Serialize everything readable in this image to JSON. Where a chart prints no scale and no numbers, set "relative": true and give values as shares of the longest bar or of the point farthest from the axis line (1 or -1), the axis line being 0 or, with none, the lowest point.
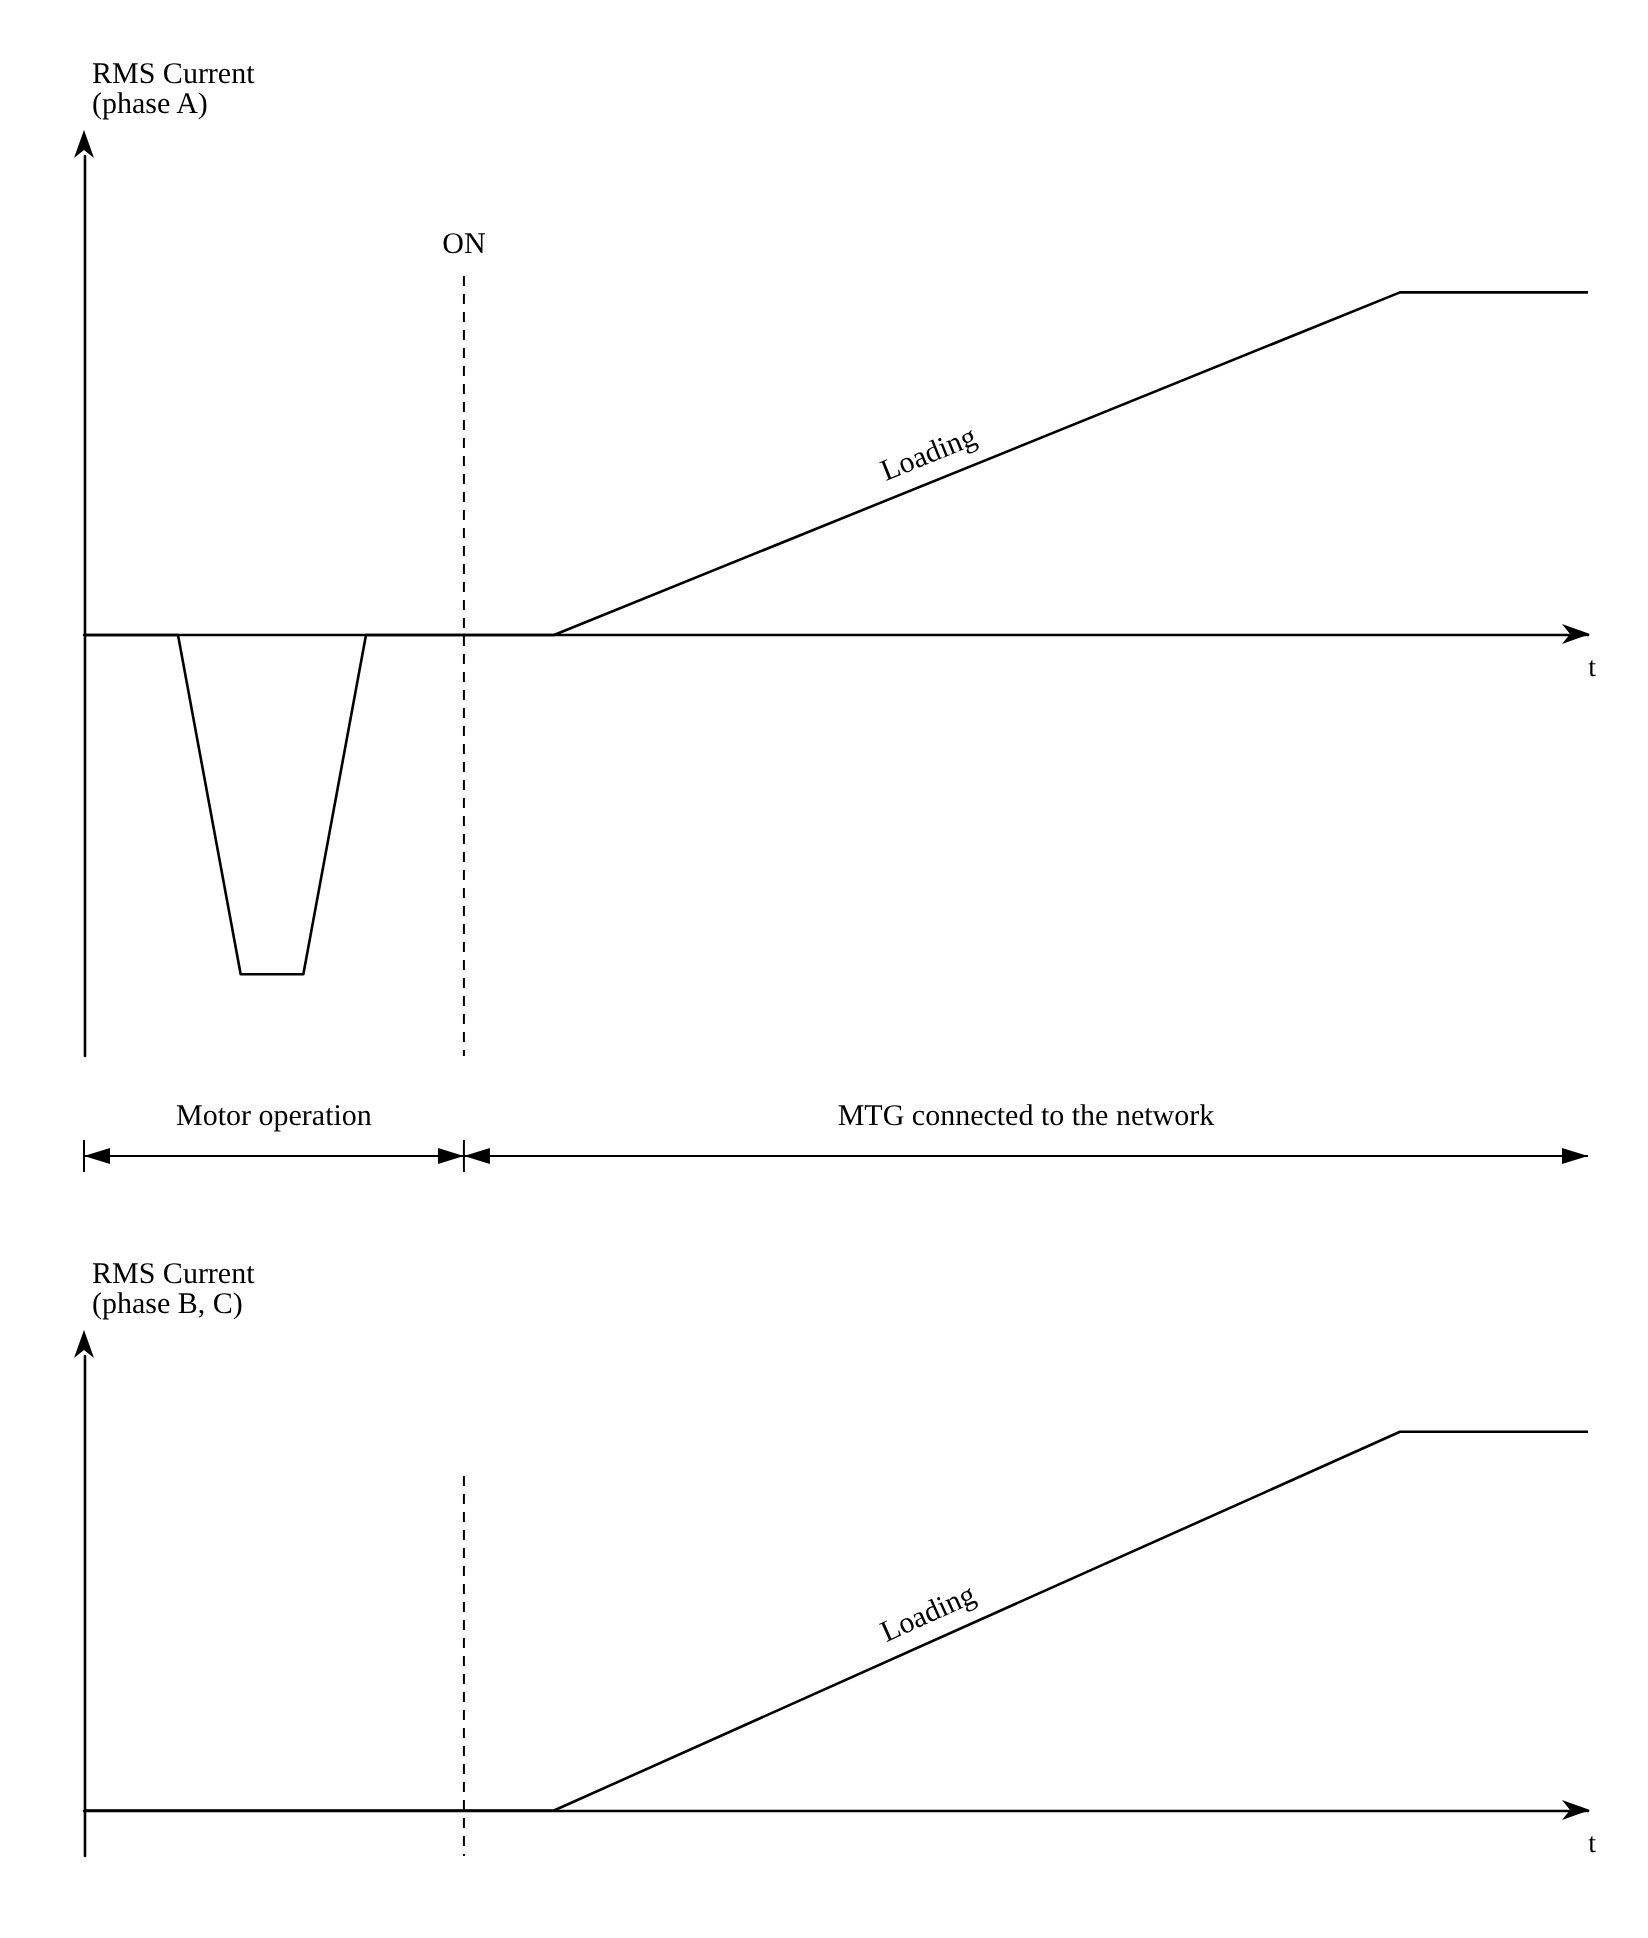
{
  "chart_data": [
    {
      "type": "line",
      "relative": true,
      "ylabel": "RMS Current\n(phase A)",
      "xlabel": "t",
      "categories": [
        null,
        null,
        null,
        null,
        null,
        null,
        null,
        null,
        null,
        null,
        null,
        null,
        null,
        null,
        null,
        null,
        null,
        null,
        null,
        null,
        null,
        null,
        null,
        null,
        null,
        null,
        null,
        null,
        null,
        null,
        null,
        null,
        null,
        null,
        null,
        null,
        null,
        null,
        null,
        null,
        null,
        null,
        null,
        null,
        null,
        null,
        null,
        null,
        null
      ],
      "series": [
        {
          "color": "#000000",
          "values": [
            0,
            null,
            null,
            0,
            null,
            -0.99,
            null,
            -0.99,
            null,
            0,
            null,
            null,
            null,
            null,
            null,
            0,
            null,
            null,
            null,
            null,
            null,
            null,
            null,
            null,
            null,
            null,
            null,
            null,
            null,
            null,
            null,
            null,
            null,
            null,
            null,
            null,
            null,
            null,
            null,
            null,
            null,
            null,
            1,
            null,
            null,
            null,
            null,
            null,
            1
          ]
        }
      ],
      "annotations": [
        "ON",
        "Motor operation",
        "MTG connected to the network",
        "Loading"
      ],
      "marker": "none",
      "line_style": "solid"
    },
    {
      "type": "line",
      "relative": true,
      "ylabel": "RMS Current\n(phase B, C)",
      "xlabel": "t",
      "categories": [
        null,
        null,
        null,
        null,
        null,
        null,
        null,
        null,
        null,
        null,
        null,
        null,
        null,
        null,
        null,
        null,
        null,
        null,
        null,
        null,
        null,
        null,
        null,
        null,
        null,
        null,
        null,
        null,
        null,
        null,
        null,
        null,
        null,
        null,
        null,
        null,
        null,
        null,
        null,
        null,
        null,
        null,
        null,
        null,
        null,
        null,
        null,
        null,
        null
      ],
      "series": [
        {
          "color": "#000000",
          "values": [
            0,
            null,
            null,
            null,
            null,
            null,
            null,
            null,
            null,
            null,
            null,
            null,
            null,
            null,
            null,
            0,
            null,
            null,
            null,
            null,
            null,
            null,
            null,
            null,
            null,
            null,
            null,
            null,
            null,
            null,
            null,
            null,
            null,
            null,
            null,
            null,
            null,
            null,
            null,
            null,
            null,
            null,
            1,
            null,
            null,
            null,
            null,
            null,
            1
          ]
        }
      ],
      "annotations": [
        "Loading"
      ],
      "marker": "none",
      "line_style": "solid"
    }
  ]
}
